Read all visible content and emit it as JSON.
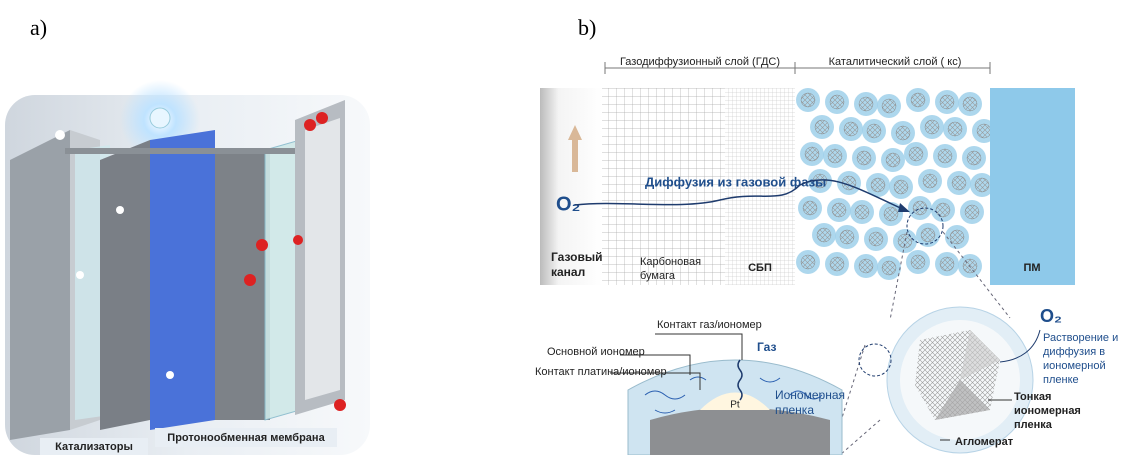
{
  "panel_a": {
    "label": "a)",
    "catalysts": "Катализаторы",
    "membrane": "Протонообменная мембрана"
  },
  "panel_b": {
    "label": "b)",
    "gdl": "Газодиффузионный слой (ГДС)",
    "cl": "Каталитический слой ( кс)",
    "o2_top": "O₂",
    "diffusion": "Диффузия из газовой фазы",
    "gas_channel": [
      "Газовый",
      "канал"
    ],
    "carbon_paper": [
      "Карбоновая",
      "бумага"
    ],
    "mpl": "СБП",
    "pm": "ПМ",
    "o2_bottom": "O₂",
    "dissolution": [
      "Растворение и",
      "диффузия в",
      "иономерной",
      "пленке"
    ],
    "thin_film": [
      "Тонкая",
      "иономерная",
      "пленка"
    ],
    "agglomerate": "Агломерат",
    "contact_gas": "Контакт газ/иономер",
    "main_ionomer": "Основной иономер",
    "contact_pt": "Контакт платина/иономер",
    "gas": "Газ",
    "pt": "Pt",
    "ionomer_film": [
      "Иономерная",
      "пленка"
    ]
  }
}
